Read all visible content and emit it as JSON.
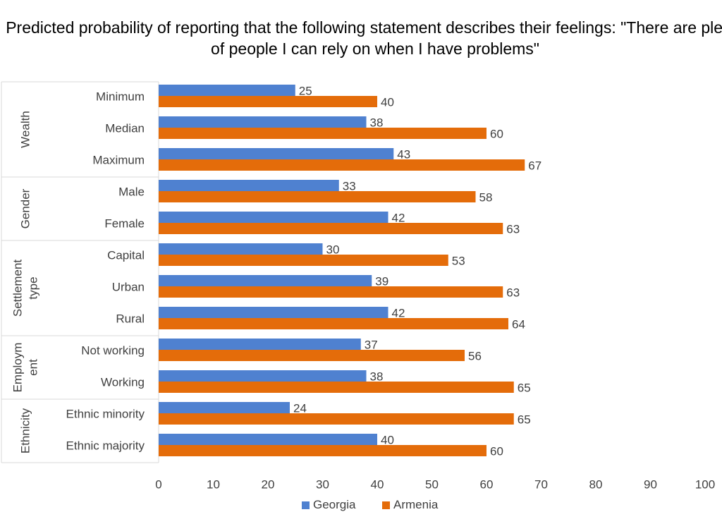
{
  "chart_data": {
    "type": "bar",
    "orientation": "horizontal",
    "title": "Predicted probability of reporting  that the following statement describes their feelings: \"There are plenty of people I can rely on when I have problems\"",
    "xlim": [
      0,
      100
    ],
    "x_ticks": [
      "0",
      "10",
      "20",
      "30",
      "40",
      "50",
      "60",
      "70",
      "80",
      "90",
      "100"
    ],
    "groups": [
      {
        "name_lines": [
          "Wealth"
        ],
        "categories": [
          "Minimum",
          "Median",
          "Maximum"
        ]
      },
      {
        "name_lines": [
          "Gender"
        ],
        "categories": [
          "Male",
          "Female"
        ]
      },
      {
        "name_lines": [
          "Settlement",
          "type"
        ],
        "categories": [
          "Capital",
          "Urban",
          "Rural"
        ]
      },
      {
        "name_lines": [
          "Employm",
          "ent"
        ],
        "categories": [
          "Not working",
          "Working"
        ]
      },
      {
        "name_lines": [
          "Ethnicity"
        ],
        "categories": [
          "Ethnic minority",
          "Ethnic majority"
        ]
      }
    ],
    "series": [
      {
        "name": "Georgia",
        "color": "#4f81d0",
        "values": [
          25,
          38,
          43,
          33,
          42,
          30,
          39,
          42,
          37,
          38,
          24,
          40
        ]
      },
      {
        "name": "Armenia",
        "color": "#e46c0a",
        "values": [
          40,
          60,
          67,
          58,
          63,
          53,
          63,
          64,
          56,
          65,
          65,
          60
        ]
      }
    ],
    "legend_position": "bottom",
    "grid": false
  }
}
